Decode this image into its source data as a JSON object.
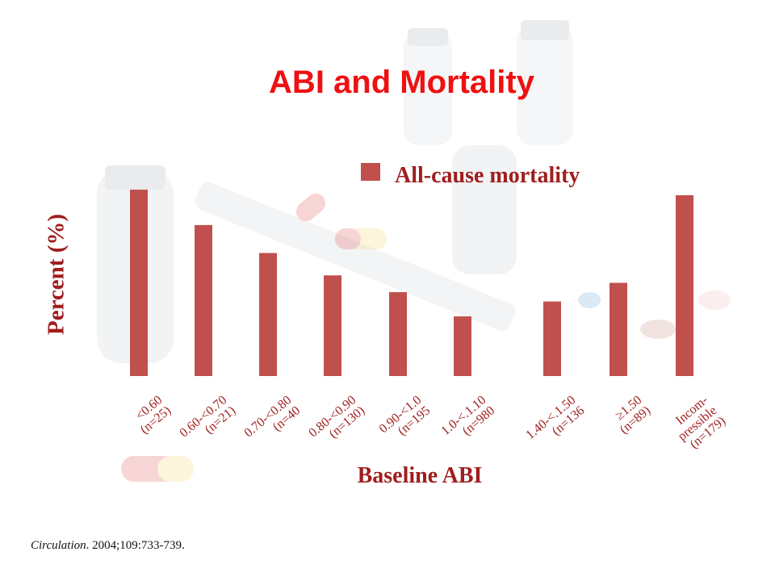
{
  "title": "ABI and Mortality",
  "citation": {
    "journal": "Circulation",
    "details": ". 2004;109:733-739."
  },
  "colors": {
    "bar": "#c0504d",
    "title": "#ee1111",
    "label": "#a01e1e"
  },
  "chart_data": {
    "type": "bar",
    "title": "",
    "xlabel": "Baseline ABI",
    "ylabel": "Percent (%)",
    "legend": "top-right",
    "grid": false,
    "series": [
      {
        "name": "All-cause mortality",
        "values": [
          100,
          81,
          66,
          54,
          45,
          32,
          40,
          50,
          97
        ]
      }
    ],
    "categories": [
      [
        "<0.60",
        "(n=25)"
      ],
      [
        "0.60-<0.70",
        "(n=21)"
      ],
      [
        "0.70-<0.80",
        "(n=40"
      ],
      [
        "0.80-<0.90",
        "(n=130)"
      ],
      [
        "0.90-<1.0",
        "(n=195"
      ],
      [
        "1.0-<.1.10",
        "(n=980"
      ],
      [
        "1.40-<.1.50",
        "(n=136"
      ],
      [
        "≥1.50",
        "(n=89)"
      ],
      [
        "Incom-",
        "pressible",
        "(n=179)"
      ]
    ],
    "ylim": [
      0,
      100
    ],
    "y_ticks_shown": false
  }
}
